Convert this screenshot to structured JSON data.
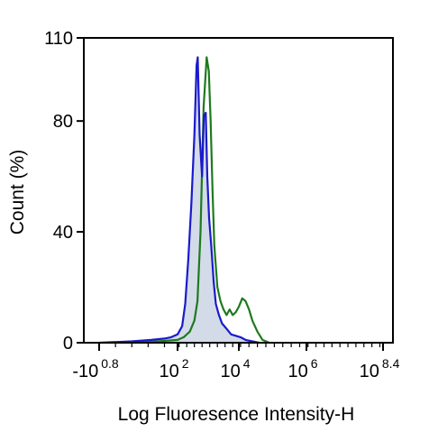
{
  "chart_data": {
    "type": "area",
    "title": "",
    "xlabel": "Log Fluoresence Intensity-H",
    "ylabel": "Count  (%)",
    "xscale": "biexponential",
    "xlim": [
      -10,
      251188643
    ],
    "ylim": [
      0,
      110
    ],
    "y_ticks": [
      {
        "value": 0,
        "label": "0"
      },
      {
        "value": 40,
        "label": "40"
      },
      {
        "value": 80,
        "label": "80"
      },
      {
        "value": 110,
        "label": "110"
      }
    ],
    "x_ticks": [
      {
        "value": -10,
        "base": "-10",
        "exp": "0.8"
      },
      {
        "value": 100,
        "base": "10",
        "exp": "2"
      },
      {
        "value": 10000,
        "base": "10",
        "exp": "4"
      },
      {
        "value": 1000000,
        "base": "10",
        "exp": "6"
      },
      {
        "value": 251188643,
        "base": "10",
        "exp": "8.4"
      }
    ],
    "grid": false,
    "legend": "none",
    "series": [
      {
        "color": "#1a1acc",
        "fill": "#d3dbe8",
        "filled": true,
        "x_log10": [
          0.8,
          1.3,
          1.6,
          1.8,
          1.9,
          2.0,
          2.15,
          2.25,
          2.35,
          2.45,
          2.55,
          2.62,
          2.66,
          2.72,
          2.8,
          2.86,
          2.92,
          2.97,
          3.03,
          3.1,
          3.18,
          3.25,
          3.35,
          3.45,
          3.6,
          3.75,
          3.9,
          4.05,
          4.2,
          4.4,
          4.6
        ],
        "values": [
          0,
          0.5,
          1,
          1.5,
          2,
          3,
          6,
          14,
          30,
          50,
          75,
          100,
          103,
          75,
          60,
          82,
          83,
          60,
          45,
          35,
          22,
          14,
          10,
          7,
          5,
          3,
          2.5,
          2,
          1,
          0.5,
          0
        ]
      },
      {
        "color": "#1e7a1e",
        "fill": "none",
        "filled": false,
        "x_log10": [
          1.3,
          1.7,
          2.0,
          2.2,
          2.4,
          2.55,
          2.65,
          2.75,
          2.85,
          2.95,
          3.02,
          3.08,
          3.14,
          3.2,
          3.3,
          3.4,
          3.5,
          3.6,
          3.7,
          3.8,
          3.9,
          4.0,
          4.1,
          4.2,
          4.3,
          4.4,
          4.55,
          4.7,
          4.9
        ],
        "values": [
          0,
          0.5,
          1,
          2,
          4,
          8,
          15,
          40,
          85,
          103,
          98,
          80,
          55,
          35,
          20,
          15,
          12,
          10,
          12,
          10,
          11,
          13,
          16,
          15,
          12,
          8,
          4,
          1,
          0
        ]
      }
    ]
  }
}
